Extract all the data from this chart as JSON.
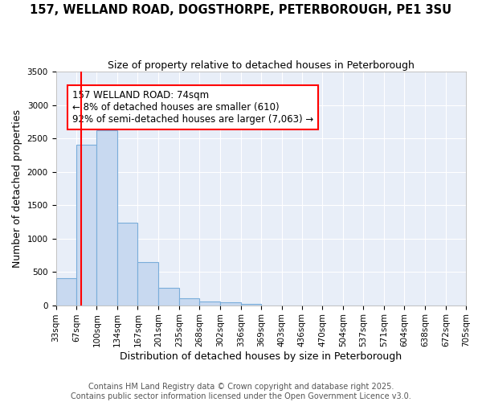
{
  "title": "157, WELLAND ROAD, DOGSTHORPE, PETERBOROUGH, PE1 3SU",
  "subtitle": "Size of property relative to detached houses in Peterborough",
  "xlabel": "Distribution of detached houses by size in Peterborough",
  "ylabel": "Number of detached properties",
  "bins": [
    33,
    67,
    100,
    134,
    167,
    201,
    235,
    268,
    302,
    336,
    369,
    403,
    436,
    470,
    504,
    537,
    571,
    604,
    638,
    672,
    705
  ],
  "values": [
    400,
    2400,
    2620,
    1240,
    650,
    260,
    100,
    55,
    45,
    20,
    0,
    0,
    0,
    0,
    0,
    0,
    0,
    0,
    0,
    0
  ],
  "bar_color": "#c8d9f0",
  "bar_edge_color": "#7aadda",
  "ylim": [
    0,
    3500
  ],
  "yticks": [
    0,
    500,
    1000,
    1500,
    2000,
    2500,
    3000,
    3500
  ],
  "property_size": 74,
  "vline_color": "red",
  "annotation_text": "157 WELLAND ROAD: 74sqm\n← 8% of detached houses are smaller (610)\n92% of semi-detached houses are larger (7,063) →",
  "footer_line1": "Contains HM Land Registry data © Crown copyright and database right 2025.",
  "footer_line2": "Contains public sector information licensed under the Open Government Licence v3.0.",
  "title_fontsize": 10.5,
  "subtitle_fontsize": 9,
  "axis_label_fontsize": 9,
  "tick_fontsize": 7.5,
  "annotation_fontsize": 8.5,
  "footer_fontsize": 7,
  "plot_bg_color": "#e8eef8",
  "fig_bg_color": "#ffffff",
  "grid_color": "#ffffff"
}
